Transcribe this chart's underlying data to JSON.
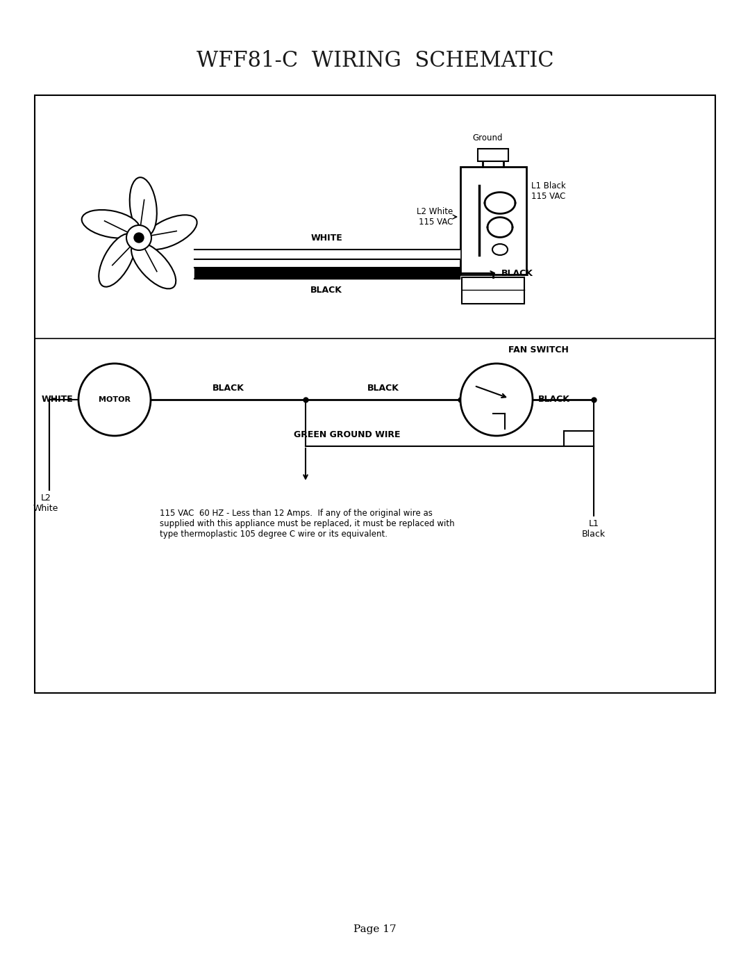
{
  "title": "WFF81-C  WIRING  SCHEMATIC",
  "page_label": "Page 17",
  "background_color": "#ffffff",
  "title_fontsize": 22,
  "note_text": "115 VAC  60 HZ - Less than 12 Amps.  If any of the original wire as\nsupplied with this appliance must be replaced, it must be replaced with\ntype thermoplastic 105 degree C wire or its equivalent.",
  "l2_label": "L2\nWhite",
  "l1_label": "L1\nBlack",
  "ground_label": "Ground",
  "l2_white_115": "L2 White\n115 VAC",
  "l1_black_115": "L1 Black\n115 VAC",
  "black_label": "BLACK",
  "white_label": "WHITE",
  "motor_label": "MOTOR",
  "white_motor": "WHITE",
  "black_motor1": "BLACK",
  "black_motor2": "BLACK",
  "fan_switch_label": "FAN SWITCH",
  "fan_switch_black": "BLACK",
  "green_ground": "GREEN GROUND WIRE"
}
